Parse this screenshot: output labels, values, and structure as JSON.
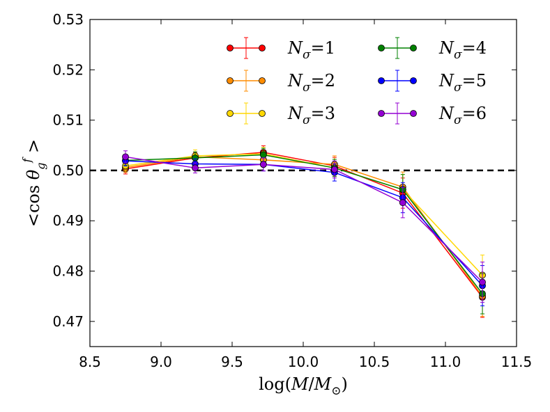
{
  "chart_data": {
    "type": "line",
    "xlabel": "log(M/M⊙)",
    "ylabel": "<cos θgf >",
    "xlim": [
      8.5,
      11.5
    ],
    "ylim": [
      0.465,
      0.53
    ],
    "xticks": [
      8.5,
      9.0,
      9.5,
      10.0,
      10.5,
      11.0,
      11.5
    ],
    "xtick_labels": [
      "8.5",
      "9.0",
      "9.5",
      "10.0",
      "10.5",
      "11.0",
      "11.5"
    ],
    "yticks": [
      0.47,
      0.48,
      0.49,
      0.5,
      0.51,
      0.52,
      0.53
    ],
    "ytick_labels": [
      "0.47",
      "0.48",
      "0.49",
      "0.50",
      "0.51",
      "0.52",
      "0.53"
    ],
    "reference_line": {
      "y": 0.5,
      "style": "dashed",
      "color": "#000000"
    },
    "legend_location": "top-right",
    "x": [
      8.75,
      9.24,
      9.72,
      10.22,
      10.7,
      11.26
    ],
    "series": [
      {
        "name": "Nσ=1",
        "legend_text": "=1",
        "color": "#ff0000",
        "values": [
          0.5003,
          0.5025,
          0.5036,
          0.5009,
          0.4955,
          0.4748
        ],
        "errors": [
          0.001,
          0.001,
          0.0013,
          0.0017,
          0.003,
          0.004
        ]
      },
      {
        "name": "Nσ=2",
        "legend_text": "=2",
        "color": "#ff8c00",
        "values": [
          0.5006,
          0.5027,
          0.5021,
          0.5012,
          0.4967,
          0.475
        ],
        "errors": [
          0.001,
          0.001,
          0.0013,
          0.0017,
          0.003,
          0.004
        ]
      },
      {
        "name": "Nσ=3",
        "legend_text": "=3",
        "color": "#ffd700",
        "values": [
          0.5009,
          0.5029,
          0.5033,
          0.5005,
          0.4962,
          0.4792
        ],
        "errors": [
          0.001,
          0.0012,
          0.0013,
          0.0017,
          0.003,
          0.004
        ]
      },
      {
        "name": "Nσ=4",
        "legend_text": "=4",
        "color": "#008000",
        "values": [
          0.502,
          0.5025,
          0.5031,
          0.5005,
          0.4962,
          0.4755
        ],
        "errors": [
          0.001,
          0.0012,
          0.0013,
          0.0017,
          0.003,
          0.004
        ]
      },
      {
        "name": "Nσ=5",
        "legend_text": "=5",
        "color": "#0000ff",
        "values": [
          0.5019,
          0.5013,
          0.5012,
          0.4996,
          0.4946,
          0.4771
        ],
        "errors": [
          0.001,
          0.001,
          0.0013,
          0.0017,
          0.003,
          0.004
        ]
      },
      {
        "name": "Nσ=6",
        "legend_text": "=6",
        "color": "#9400d3",
        "values": [
          0.5027,
          0.5005,
          0.5012,
          0.5002,
          0.4936,
          0.4778
        ],
        "errors": [
          0.0012,
          0.001,
          0.0013,
          0.0017,
          0.003,
          0.004
        ]
      }
    ]
  }
}
